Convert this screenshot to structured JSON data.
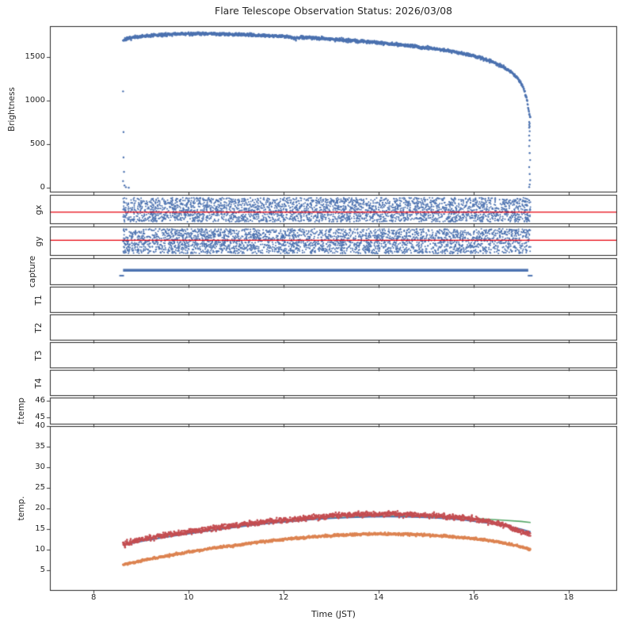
{
  "chart_data": {
    "type": "scatter",
    "title": "Flare Telescope Observation Status: 2026/03/08",
    "xlabel": "Time (JST)",
    "x_axis": {
      "lim": [
        7.08,
        19.02
      ],
      "ticks": [
        8,
        10,
        12,
        14,
        16,
        18
      ],
      "data_range": [
        8.62,
        17.2
      ]
    },
    "palette": {
      "blue": "#4C72B0",
      "green": "#55A868",
      "red": "#C44E52",
      "orange": "#DD8452",
      "refline": "#E8000B",
      "spine": "#262626",
      "text": "#262626",
      "background": "#ffffff"
    },
    "legend": "none",
    "grid": false,
    "panels": [
      {
        "id": "brightness",
        "ylabel": "Brightness",
        "ylim": [
          -50,
          1850
        ],
        "yticks": [
          0,
          500,
          1000,
          1500
        ],
        "series": [
          {
            "type": "scatter-curve",
            "color": "blue",
            "noise": 9,
            "dot": 1.2,
            "step": 0.005,
            "anchors": [
              [
                8.62,
                1690
              ],
              [
                8.8,
                1716
              ],
              [
                9.0,
                1731
              ],
              [
                9.3,
                1746
              ],
              [
                9.6,
                1756
              ],
              [
                10.0,
                1763
              ],
              [
                10.3,
                1766
              ],
              [
                10.6,
                1763
              ],
              [
                11.0,
                1756
              ],
              [
                11.3,
                1749
              ],
              [
                11.6,
                1743
              ],
              [
                11.9,
                1736
              ],
              [
                12.1,
                1729
              ],
              [
                12.25,
                1712
              ],
              [
                12.4,
                1723
              ],
              [
                12.7,
                1713
              ],
              [
                13.0,
                1701
              ],
              [
                13.3,
                1691
              ],
              [
                13.6,
                1679
              ],
              [
                13.9,
                1666
              ],
              [
                14.2,
                1651
              ],
              [
                14.5,
                1636
              ],
              [
                14.8,
                1619
              ],
              [
                14.9,
                1597
              ],
              [
                15.0,
                1606
              ],
              [
                15.2,
                1589
              ],
              [
                15.5,
                1566
              ],
              [
                15.8,
                1536
              ],
              [
                16.0,
                1511
              ],
              [
                16.2,
                1479
              ],
              [
                16.4,
                1441
              ],
              [
                16.6,
                1391
              ],
              [
                16.8,
                1322
              ],
              [
                16.95,
                1242
              ],
              [
                17.05,
                1142
              ],
              [
                17.12,
                1012
              ],
              [
                17.17,
                848
              ],
              [
                17.2,
                792
              ]
            ]
          }
        ],
        "points": [
          [
            8.62,
            1105
          ],
          [
            8.63,
            640
          ],
          [
            8.63,
            350
          ],
          [
            8.64,
            185
          ],
          [
            8.62,
            80
          ],
          [
            8.65,
            30
          ],
          [
            8.68,
            10
          ],
          [
            8.74,
            4
          ],
          [
            17.17,
            755
          ],
          [
            17.18,
            740
          ],
          [
            17.17,
            722
          ],
          [
            17.18,
            705
          ],
          [
            17.17,
            690
          ],
          [
            17.18,
            650
          ],
          [
            17.17,
            600
          ],
          [
            17.18,
            545
          ],
          [
            17.17,
            480
          ],
          [
            17.18,
            400
          ],
          [
            17.19,
            320
          ],
          [
            17.17,
            240
          ],
          [
            17.18,
            160
          ],
          [
            17.19,
            90
          ],
          [
            17.18,
            40
          ],
          [
            17.17,
            12
          ]
        ]
      },
      {
        "id": "gx",
        "ylabel": "gx",
        "ylim": [
          -1,
          1
        ],
        "yticks": [],
        "series": [
          {
            "type": "band",
            "color": "blue",
            "count": 3000,
            "dot": 1.0,
            "xrange": [
              8.62,
              17.2
            ],
            "yrange": [
              -0.84,
              0.8
            ]
          }
        ],
        "reflines": [
          {
            "y": -0.18,
            "color": "refline"
          }
        ]
      },
      {
        "id": "gy",
        "ylabel": "gy",
        "ylim": [
          -1,
          1
        ],
        "yticks": [],
        "series": [
          {
            "type": "band",
            "color": "blue",
            "count": 3000,
            "dot": 1.0,
            "xrange": [
              8.62,
              17.2
            ],
            "yrange": [
              -0.84,
              0.84
            ]
          }
        ],
        "reflines": [
          {
            "y": 0.06,
            "color": "refline"
          }
        ]
      },
      {
        "id": "capture",
        "ylabel": "capture",
        "ylim": [
          -1,
          1
        ],
        "yticks": [],
        "series": [
          {
            "type": "hline",
            "color": "blue",
            "y": 0.1,
            "x0": 8.62,
            "x1": 17.15,
            "lw": 3.5
          }
        ],
        "end_marks": [
          [
            8.59,
            -0.3
          ],
          [
            17.19,
            -0.3
          ]
        ]
      },
      {
        "id": "T1",
        "ylabel": "T1",
        "ylim": [
          0,
          1
        ],
        "yticks": [],
        "series": []
      },
      {
        "id": "T2",
        "ylabel": "T2",
        "ylim": [
          0,
          1
        ],
        "yticks": [],
        "series": []
      },
      {
        "id": "T3",
        "ylabel": "T3",
        "ylim": [
          0,
          1
        ],
        "yticks": [],
        "series": []
      },
      {
        "id": "T4",
        "ylabel": "T4",
        "ylim": [
          0,
          1
        ],
        "yticks": [],
        "series": []
      },
      {
        "id": "f.temp",
        "ylabel": "f.temp",
        "ylim": [
          44.55,
          46.2
        ],
        "yticks": [
          45,
          46
        ],
        "series": []
      },
      {
        "id": "temp",
        "ylabel": "temp.",
        "ylim": [
          0,
          40
        ],
        "yticks": [
          5,
          10,
          15,
          20,
          25,
          30,
          35,
          40
        ],
        "series": [
          {
            "type": "line",
            "color": "green",
            "lw": 1.6,
            "anchors": [
              [
                8.62,
                11.2
              ],
              [
                9.0,
                12.1
              ],
              [
                9.4,
                12.9
              ],
              [
                9.8,
                13.6
              ],
              [
                10.2,
                14.3
              ],
              [
                10.6,
                14.9
              ],
              [
                11.0,
                15.5
              ],
              [
                11.4,
                16.1
              ],
              [
                11.8,
                16.6
              ],
              [
                12.2,
                17.0
              ],
              [
                12.6,
                17.4
              ],
              [
                13.0,
                17.7
              ],
              [
                13.4,
                17.9
              ],
              [
                13.8,
                18.05
              ],
              [
                14.2,
                18.15
              ],
              [
                14.6,
                18.15
              ],
              [
                15.0,
                18.05
              ],
              [
                15.4,
                17.9
              ],
              [
                15.8,
                17.7
              ],
              [
                16.2,
                17.45
              ],
              [
                16.6,
                17.15
              ],
              [
                17.0,
                16.85
              ],
              [
                17.2,
                16.6
              ]
            ]
          },
          {
            "type": "line",
            "color": "blue",
            "lw": 1.6,
            "anchors": [
              [
                8.62,
                11.1
              ],
              [
                9.0,
                12.0
              ],
              [
                9.4,
                12.8
              ],
              [
                9.8,
                13.5
              ],
              [
                10.2,
                14.2
              ],
              [
                10.6,
                14.85
              ],
              [
                11.0,
                15.45
              ],
              [
                11.4,
                16.0
              ],
              [
                11.8,
                16.5
              ],
              [
                12.2,
                16.9
              ],
              [
                12.6,
                17.3
              ],
              [
                13.0,
                17.6
              ],
              [
                13.4,
                17.8
              ],
              [
                13.8,
                17.95
              ],
              [
                14.2,
                18.0
              ],
              [
                14.6,
                17.95
              ],
              [
                15.0,
                17.8
              ],
              [
                15.4,
                17.55
              ],
              [
                15.8,
                17.15
              ],
              [
                16.2,
                16.6
              ],
              [
                16.6,
                15.95
              ],
              [
                17.0,
                15.0
              ],
              [
                17.2,
                14.3
              ]
            ]
          },
          {
            "type": "scatter-curve",
            "color": "red",
            "noise": 0.32,
            "dot": 1.3,
            "step": 0.006,
            "anchors": [
              [
                8.62,
                11.3
              ],
              [
                9.0,
                12.4
              ],
              [
                9.4,
                13.3
              ],
              [
                9.8,
                14.0
              ],
              [
                10.2,
                14.7
              ],
              [
                10.6,
                15.3
              ],
              [
                11.0,
                15.9
              ],
              [
                11.4,
                16.45
              ],
              [
                11.8,
                16.95
              ],
              [
                12.2,
                17.4
              ],
              [
                12.6,
                17.8
              ],
              [
                13.0,
                18.2
              ],
              [
                13.4,
                18.45
              ],
              [
                13.8,
                18.6
              ],
              [
                14.2,
                18.65
              ],
              [
                14.6,
                18.55
              ],
              [
                15.0,
                18.35
              ],
              [
                15.4,
                18.1
              ],
              [
                15.8,
                17.7
              ],
              [
                16.2,
                17.1
              ],
              [
                16.6,
                16.0
              ],
              [
                16.9,
                14.9
              ],
              [
                17.1,
                14.1
              ],
              [
                17.2,
                13.7
              ]
            ]
          },
          {
            "type": "scatter-curve",
            "color": "orange",
            "noise": 0.15,
            "dot": 1.3,
            "step": 0.006,
            "anchors": [
              [
                8.62,
                6.3
              ],
              [
                9.0,
                7.3
              ],
              [
                9.4,
                8.2
              ],
              [
                9.8,
                9.0
              ],
              [
                10.2,
                9.8
              ],
              [
                10.6,
                10.5
              ],
              [
                11.0,
                11.1
              ],
              [
                11.4,
                11.7
              ],
              [
                11.8,
                12.2
              ],
              [
                12.2,
                12.7
              ],
              [
                12.6,
                13.1
              ],
              [
                13.0,
                13.4
              ],
              [
                13.4,
                13.65
              ],
              [
                13.8,
                13.8
              ],
              [
                14.2,
                13.85
              ],
              [
                14.6,
                13.75
              ],
              [
                15.0,
                13.55
              ],
              [
                15.4,
                13.3
              ],
              [
                15.8,
                12.9
              ],
              [
                16.2,
                12.4
              ],
              [
                16.6,
                11.7
              ],
              [
                17.0,
                10.7
              ],
              [
                17.2,
                10.0
              ]
            ]
          }
        ]
      }
    ]
  }
}
